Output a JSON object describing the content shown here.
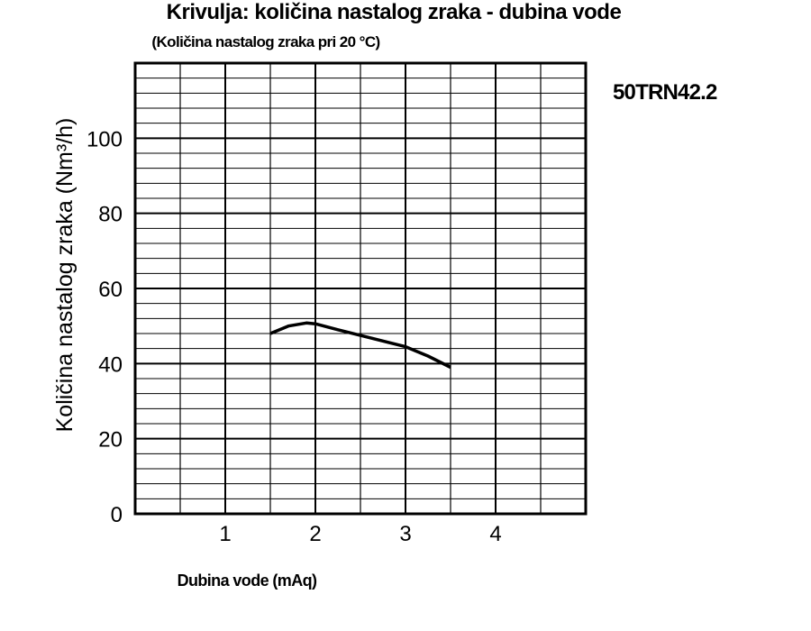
{
  "chart_data": {
    "type": "line",
    "title": "Krivulja: količina nastalog zraka - dubina vode",
    "subtitle": "(Količina nastalog zraka pri 20 °C)",
    "model_label": "50TRN42.2",
    "xlabel": "Dubina vode (mAq)",
    "ylabel": "Količina nastalog zraka (Nm³/h)",
    "xlim": [
      0,
      5
    ],
    "ylim": [
      0,
      120
    ],
    "x_ticks": [
      1,
      2,
      3,
      4
    ],
    "y_ticks": [
      0,
      20,
      40,
      60,
      80,
      100
    ],
    "x_ticks_labels": [
      "1",
      "2",
      "3",
      "4"
    ],
    "y_ticks_labels": [
      "0",
      "20",
      "40",
      "60",
      "80",
      "100"
    ],
    "grid": {
      "x_step": 0.5,
      "y_step": 4,
      "y_major_step": 20,
      "x_major_step": 1
    },
    "series": [
      {
        "x": [
          1.5,
          1.7,
          1.9,
          2.0,
          2.25,
          2.5,
          3.0,
          3.25,
          3.5
        ],
        "y": [
          48,
          50,
          50.8,
          50.6,
          49,
          47.5,
          44.5,
          42,
          39
        ]
      }
    ],
    "colors": {
      "line": "#000000",
      "grid": "#000000",
      "background": "#ffffff"
    }
  }
}
